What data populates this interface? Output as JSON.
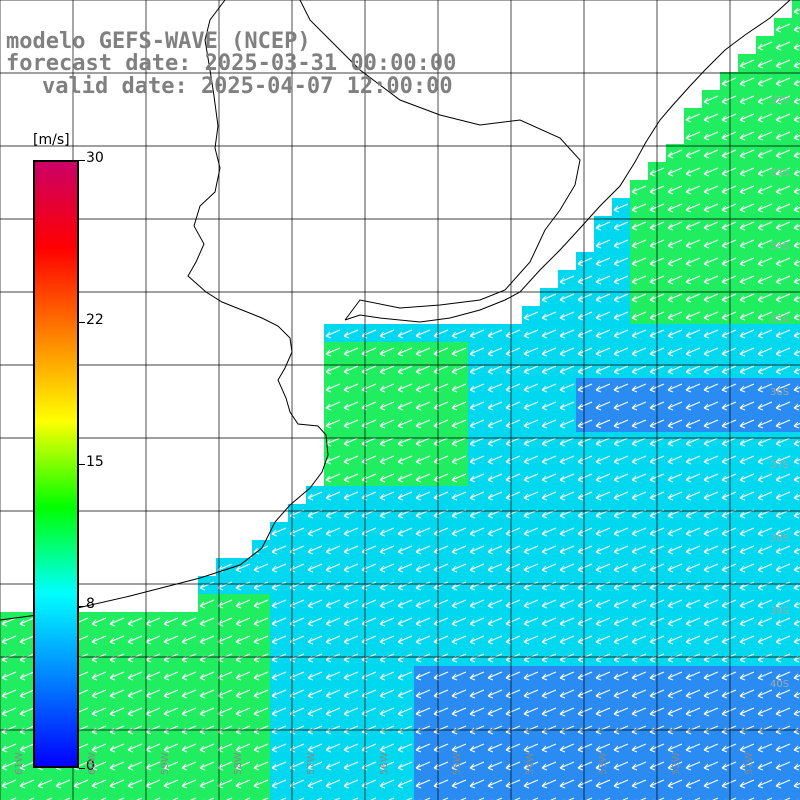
{
  "title": {
    "line1": "modelo GEFS-WAVE (NCEP)",
    "line2": "forecast date: 2025-03-31 00:00:00",
    "line3": "valid date: 2025-04-07 12:00:00"
  },
  "colorbar": {
    "unit": "[m/s]",
    "min": 0,
    "max": 30,
    "ticks": [
      {
        "label": "30",
        "value": 30
      },
      {
        "label": "22",
        "value": 22
      },
      {
        "label": "15",
        "value": 15
      },
      {
        "label": "8",
        "value": 8
      },
      {
        "label": "0",
        "value": 0
      }
    ],
    "colors": [
      "#0000ff",
      "#0080ff",
      "#00ffff",
      "#00ff00",
      "#ffff00",
      "#ff8000",
      "#ff0000",
      "#cc0066"
    ]
  },
  "map": {
    "background_land": "#ffffff",
    "gridline_color": "#000000",
    "arrow_color": "#ffffff",
    "lat_labels": [
      "32S",
      "33S",
      "34S",
      "35S",
      "36S",
      "37S",
      "38S",
      "39S",
      "40S"
    ],
    "lon_labels": [
      "61W",
      "60W",
      "59W",
      "58W",
      "57W",
      "56W",
      "55W",
      "54W",
      "53W",
      "52W",
      "51W"
    ],
    "wind_direction": "from east-northeast"
  }
}
